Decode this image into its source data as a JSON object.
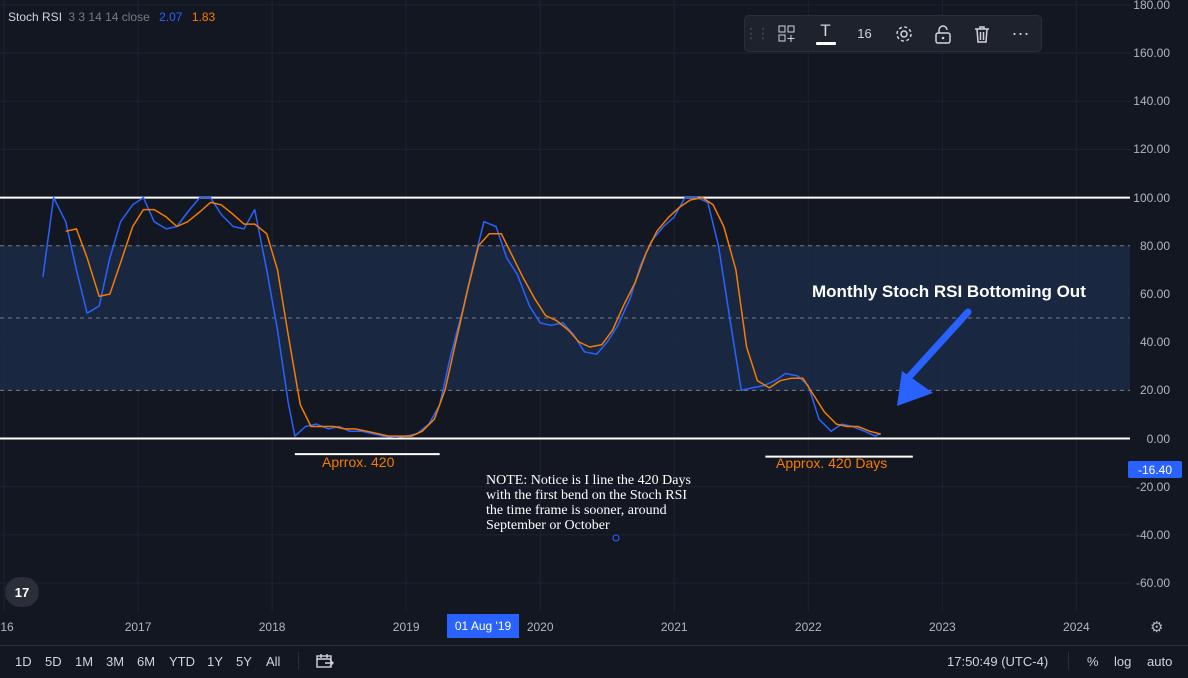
{
  "indicator": {
    "name": "Stoch RSI",
    "params": "3 3 14 14 close",
    "k_value": "2.07",
    "d_value": "1.83"
  },
  "toolbar": {
    "font_size": "16",
    "text_icon": "T",
    "icons": [
      "drag-handle-icon",
      "add-template-icon",
      "text-color-icon",
      "settings-icon",
      "unlock-icon",
      "trash-icon",
      "more-icon"
    ]
  },
  "annotations": {
    "left_range": "Aprrox. 420",
    "right_range": "Approx. 420 Days",
    "headline": "Monthly Stoch RSI Bottoming Out",
    "note": "NOTE: Notice is I line the 420 Days\nwith the first bend on the Stoch RSI\nthe time frame is sooner, around\nSeptember or October"
  },
  "crosshair": {
    "y_value": "-16.40",
    "x_value": "01 Aug '19"
  },
  "bottom_bar": {
    "ranges": [
      "1D",
      "5D",
      "1M",
      "3M",
      "6M",
      "YTD",
      "1Y",
      "5Y",
      "All"
    ],
    "time": "17:50:49 (UTC-4)",
    "percent": "%",
    "log": "log",
    "auto": "auto"
  },
  "colors": {
    "background": "#131722",
    "k_line": "#2962ff",
    "d_line": "#f57c00",
    "band_fill": "#1b2c45",
    "hlines": "#ffffff"
  },
  "chart_data": {
    "type": "line",
    "y_ticks": [
      "180.00",
      "160.00",
      "140.00",
      "120.00",
      "100.00",
      "80.00",
      "60.00",
      "40.00",
      "20.00",
      "0.00",
      "-20.00",
      "-40.00",
      "-60.00"
    ],
    "x_ticks": [
      "16",
      "2017",
      "2018",
      "2019",
      "2020",
      "2021",
      "2022",
      "2023",
      "2024"
    ],
    "ylim": [
      -72,
      182
    ],
    "xlim": [
      2015.97,
      2024.4
    ],
    "bands": {
      "upper": 80,
      "middle": 50,
      "lower": 20
    },
    "horizontal_lines": [
      100,
      0
    ],
    "range_lines": [
      [
        2018.17,
        2019.25,
        -6.5
      ],
      [
        2021.68,
        2022.78,
        -7.5
      ]
    ],
    "series": [
      {
        "color": "#2962ff",
        "points": [
          [
            2016.29,
            67
          ],
          [
            2016.37,
            100
          ],
          [
            2016.46,
            90
          ],
          [
            2016.54,
            70
          ],
          [
            2016.62,
            52
          ],
          [
            2016.71,
            55
          ],
          [
            2016.79,
            75
          ],
          [
            2016.87,
            90
          ],
          [
            2016.96,
            97
          ],
          [
            2017.04,
            100
          ],
          [
            2017.12,
            90
          ],
          [
            2017.21,
            87
          ],
          [
            2017.29,
            88
          ],
          [
            2017.37,
            94
          ],
          [
            2017.46,
            100
          ],
          [
            2017.54,
            100
          ],
          [
            2017.62,
            93
          ],
          [
            2017.71,
            88
          ],
          [
            2017.79,
            87
          ],
          [
            2017.87,
            95
          ],
          [
            2017.96,
            70
          ],
          [
            2018.04,
            45
          ],
          [
            2018.12,
            15
          ],
          [
            2018.17,
            1
          ],
          [
            2018.25,
            5
          ],
          [
            2018.33,
            6
          ],
          [
            2018.42,
            4
          ],
          [
            2018.5,
            5
          ],
          [
            2018.58,
            3
          ],
          [
            2018.67,
            3
          ],
          [
            2018.75,
            2
          ],
          [
            2018.83,
            1
          ],
          [
            2018.92,
            0.5
          ],
          [
            2019.0,
            1
          ],
          [
            2019.08,
            2
          ],
          [
            2019.17,
            6
          ],
          [
            2019.25,
            14
          ],
          [
            2019.33,
            34
          ],
          [
            2019.42,
            53
          ],
          [
            2019.5,
            72
          ],
          [
            2019.58,
            90
          ],
          [
            2019.67,
            88
          ],
          [
            2019.75,
            75
          ],
          [
            2019.83,
            68
          ],
          [
            2019.92,
            55
          ],
          [
            2020.0,
            48
          ],
          [
            2020.08,
            47
          ],
          [
            2020.17,
            48
          ],
          [
            2020.25,
            43
          ],
          [
            2020.33,
            36
          ],
          [
            2020.42,
            35
          ],
          [
            2020.5,
            40
          ],
          [
            2020.58,
            47
          ],
          [
            2020.67,
            58
          ],
          [
            2020.75,
            72
          ],
          [
            2020.83,
            82
          ],
          [
            2020.92,
            88
          ],
          [
            2021.0,
            92
          ],
          [
            2021.08,
            100
          ],
          [
            2021.17,
            100
          ],
          [
            2021.25,
            98
          ],
          [
            2021.33,
            80
          ],
          [
            2021.42,
            48
          ],
          [
            2021.5,
            20
          ],
          [
            2021.58,
            21
          ],
          [
            2021.67,
            22
          ],
          [
            2021.75,
            24
          ],
          [
            2021.83,
            27
          ],
          [
            2021.92,
            26
          ],
          [
            2022.0,
            22
          ],
          [
            2022.08,
            8
          ],
          [
            2022.17,
            3
          ],
          [
            2022.25,
            6
          ],
          [
            2022.33,
            5
          ],
          [
            2022.42,
            3
          ],
          [
            2022.5,
            1
          ],
          [
            2022.54,
            2.07
          ]
        ]
      },
      {
        "color": "#f57c00",
        "points": [
          [
            2016.46,
            86
          ],
          [
            2016.54,
            87
          ],
          [
            2016.62,
            75
          ],
          [
            2016.71,
            59
          ],
          [
            2016.79,
            60
          ],
          [
            2016.87,
            73
          ],
          [
            2016.96,
            88
          ],
          [
            2017.04,
            95
          ],
          [
            2017.12,
            95
          ],
          [
            2017.21,
            92
          ],
          [
            2017.29,
            88
          ],
          [
            2017.37,
            90
          ],
          [
            2017.46,
            94
          ],
          [
            2017.54,
            98
          ],
          [
            2017.62,
            97
          ],
          [
            2017.71,
            93
          ],
          [
            2017.79,
            89
          ],
          [
            2017.87,
            89
          ],
          [
            2017.96,
            85
          ],
          [
            2018.04,
            70
          ],
          [
            2018.12,
            43
          ],
          [
            2018.21,
            14
          ],
          [
            2018.29,
            5
          ],
          [
            2018.37,
            5
          ],
          [
            2018.46,
            5
          ],
          [
            2018.54,
            4
          ],
          [
            2018.62,
            4
          ],
          [
            2018.71,
            3
          ],
          [
            2018.79,
            2
          ],
          [
            2018.87,
            1
          ],
          [
            2018.96,
            1
          ],
          [
            2019.04,
            1
          ],
          [
            2019.12,
            3
          ],
          [
            2019.21,
            8
          ],
          [
            2019.29,
            20
          ],
          [
            2019.37,
            40
          ],
          [
            2019.46,
            62
          ],
          [
            2019.54,
            80
          ],
          [
            2019.62,
            85
          ],
          [
            2019.71,
            85
          ],
          [
            2019.79,
            76
          ],
          [
            2019.87,
            67
          ],
          [
            2019.96,
            58
          ],
          [
            2020.04,
            51
          ],
          [
            2020.12,
            49
          ],
          [
            2020.21,
            45
          ],
          [
            2020.29,
            40
          ],
          [
            2020.37,
            38
          ],
          [
            2020.46,
            39
          ],
          [
            2020.54,
            45
          ],
          [
            2020.62,
            55
          ],
          [
            2020.71,
            65
          ],
          [
            2020.79,
            77
          ],
          [
            2020.87,
            86
          ],
          [
            2020.96,
            92
          ],
          [
            2021.04,
            96
          ],
          [
            2021.12,
            99
          ],
          [
            2021.21,
            100
          ],
          [
            2021.29,
            97
          ],
          [
            2021.37,
            88
          ],
          [
            2021.46,
            70
          ],
          [
            2021.54,
            38
          ],
          [
            2021.62,
            24
          ],
          [
            2021.71,
            21
          ],
          [
            2021.79,
            24
          ],
          [
            2021.87,
            25
          ],
          [
            2021.96,
            25
          ],
          [
            2022.04,
            18
          ],
          [
            2022.12,
            11
          ],
          [
            2022.21,
            6
          ],
          [
            2022.29,
            5
          ],
          [
            2022.37,
            5
          ],
          [
            2022.46,
            3
          ],
          [
            2022.54,
            1.83
          ]
        ]
      }
    ]
  }
}
